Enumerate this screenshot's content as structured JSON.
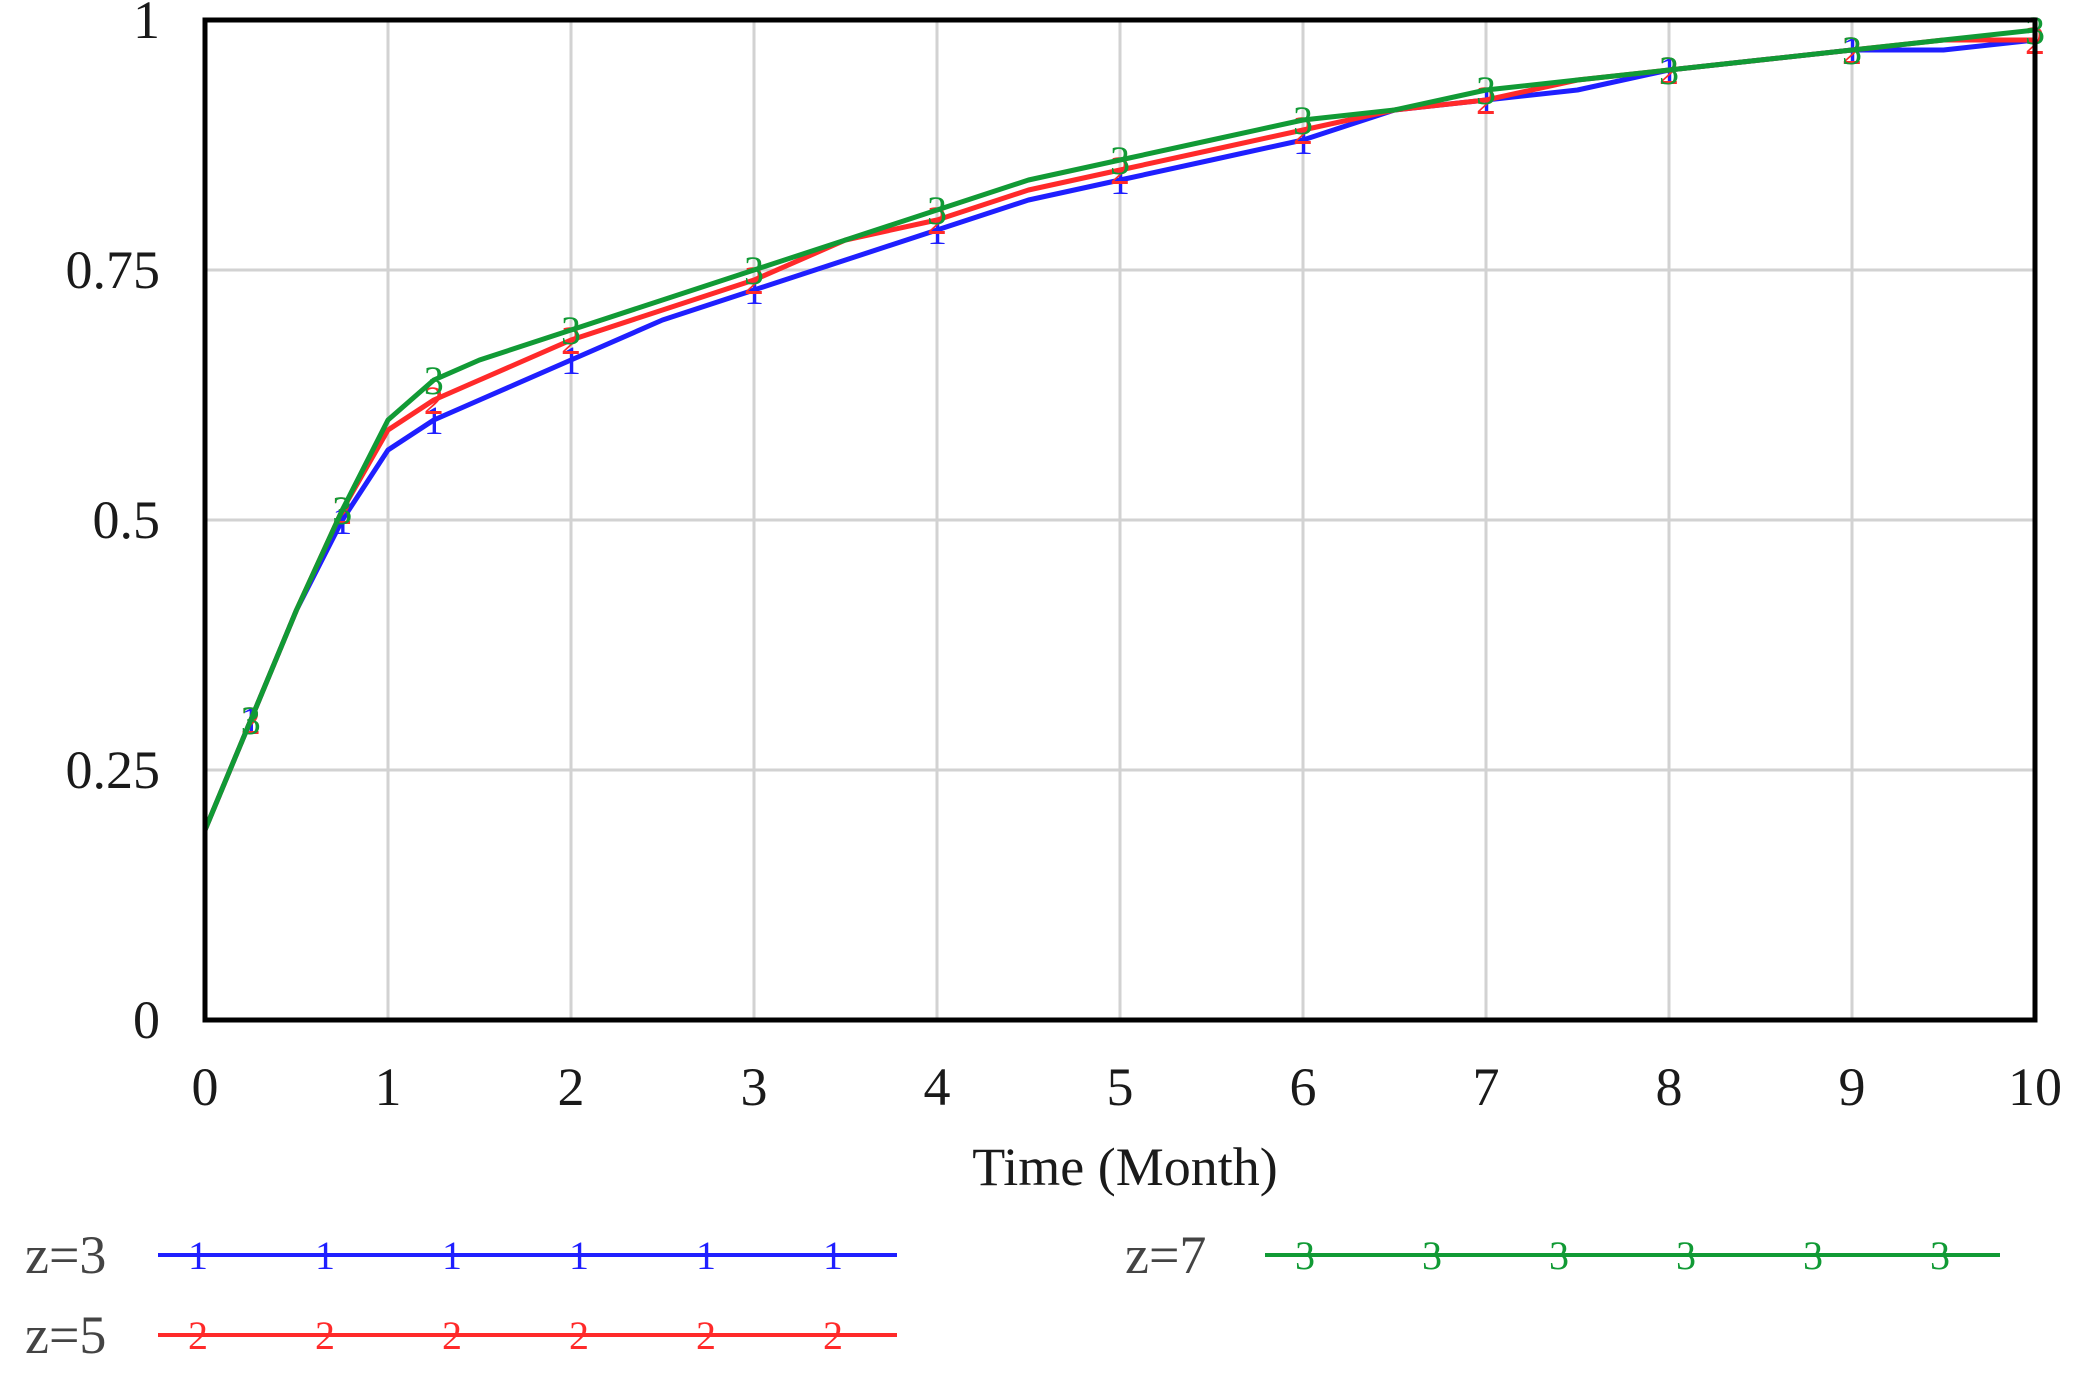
{
  "chart_data": {
    "type": "line",
    "xlabel": "Time (Month)",
    "ylabel": "",
    "xlim": [
      0,
      10
    ],
    "ylim": [
      0,
      1
    ],
    "x_ticks": [
      0,
      1,
      2,
      3,
      4,
      5,
      6,
      7,
      8,
      9,
      10
    ],
    "x_tick_labels": [
      "0",
      "1",
      "2",
      "3",
      "4",
      "5",
      "6",
      "7",
      "8",
      "9",
      "10"
    ],
    "y_ticks": [
      0,
      0.25,
      0.5,
      0.75,
      1
    ],
    "y_tick_labels": [
      "0",
      "0.25",
      "0.5",
      "0.75",
      "1"
    ],
    "grid": true,
    "legend_position": "bottom",
    "x": [
      0,
      0.25,
      0.5,
      0.75,
      1,
      1.25,
      1.5,
      2,
      2.5,
      3,
      3.5,
      4,
      4.5,
      5,
      5.5,
      6,
      6.5,
      7,
      7.5,
      8,
      8.5,
      9,
      9.5,
      10
    ],
    "series": [
      {
        "name": "z=3",
        "marker": "1",
        "color": "#1f1fff",
        "values": [
          0.19,
          0.3,
          0.41,
          0.5,
          0.57,
          0.6,
          0.62,
          0.66,
          0.7,
          0.73,
          0.76,
          0.79,
          0.82,
          0.84,
          0.86,
          0.88,
          0.91,
          0.92,
          0.93,
          0.95,
          0.96,
          0.97,
          0.97,
          0.98
        ]
      },
      {
        "name": "z=5",
        "marker": "2",
        "color": "#ff2a2a",
        "values": [
          0.19,
          0.3,
          0.41,
          0.51,
          0.59,
          0.62,
          0.64,
          0.68,
          0.71,
          0.74,
          0.78,
          0.8,
          0.83,
          0.85,
          0.87,
          0.89,
          0.91,
          0.92,
          0.94,
          0.95,
          0.96,
          0.97,
          0.98,
          0.98
        ]
      },
      {
        "name": "z=7",
        "marker": "3",
        "color": "#119a35",
        "values": [
          0.19,
          0.3,
          0.41,
          0.51,
          0.6,
          0.64,
          0.66,
          0.69,
          0.72,
          0.75,
          0.78,
          0.81,
          0.84,
          0.86,
          0.88,
          0.9,
          0.91,
          0.93,
          0.94,
          0.95,
          0.96,
          0.97,
          0.98,
          0.99
        ]
      }
    ]
  }
}
